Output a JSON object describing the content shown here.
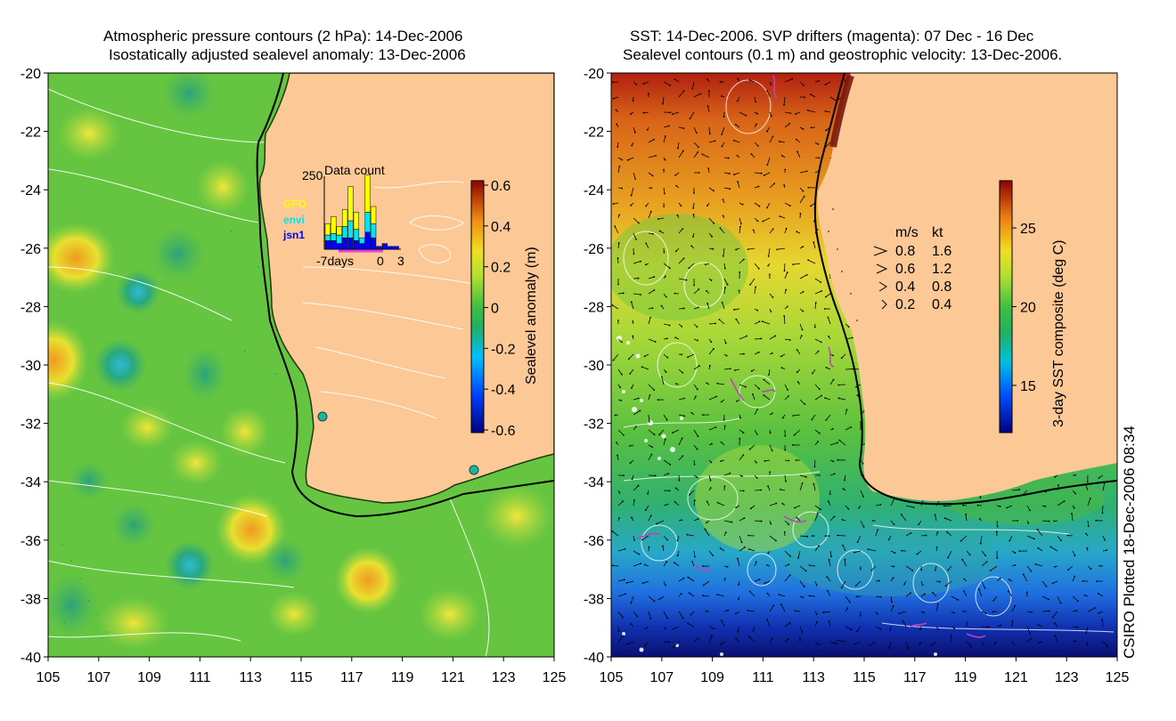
{
  "left_panel": {
    "title_line1": "Atmospheric pressure contours (2 hPa): 14-Dec-2006",
    "title_line2": "Isostatically adjusted sealevel anomaly: 13-Dec-2006",
    "x_ticks": [
      "105",
      "107",
      "109",
      "111",
      "113",
      "115",
      "117",
      "119",
      "121",
      "123",
      "125"
    ],
    "y_ticks": [
      "-20",
      "-22",
      "-24",
      "-26",
      "-28",
      "-30",
      "-32",
      "-34",
      "-36",
      "-38",
      "-40"
    ],
    "colorbar": {
      "label": "Sealevel anomaly (m)",
      "ticks": [
        "0.6",
        "0.4",
        "0.2",
        "0",
        "-0.2",
        "-0.4",
        "-0.6"
      ],
      "range": [
        -0.6,
        0.6
      ]
    },
    "inset": {
      "title": "Data count",
      "ymax_label": "250",
      "x_labels": [
        "-7days",
        "0",
        "3"
      ],
      "legend": [
        {
          "name": "GFO",
          "color": "#ffff00"
        },
        {
          "name": "envi",
          "color": "#00e5ee"
        },
        {
          "name": "jsn1",
          "color": "#0000ff"
        }
      ],
      "bars": [
        {
          "jsn1": 30,
          "envi": 20,
          "gfo": 40
        },
        {
          "jsn1": 30,
          "envi": 25,
          "gfo": 60
        },
        {
          "jsn1": 20,
          "envi": 30,
          "gfo": 30
        },
        {
          "jsn1": 40,
          "envi": 40,
          "gfo": 60
        },
        {
          "jsn1": 40,
          "envi": 60,
          "gfo": 120
        },
        {
          "jsn1": 30,
          "envi": 40,
          "gfo": 60
        },
        {
          "jsn1": 20,
          "envi": 20,
          "gfo": 0
        },
        {
          "jsn1": 60,
          "envi": 70,
          "gfo": 130
        },
        {
          "jsn1": 40,
          "envi": 50,
          "gfo": 60
        },
        {
          "jsn1": 10,
          "envi": 0,
          "gfo": 0
        },
        {
          "jsn1": 20,
          "envi": 0,
          "gfo": 0
        },
        {
          "jsn1": 10,
          "envi": 0,
          "gfo": 0
        },
        {
          "jsn1": 10,
          "envi": 0,
          "gfo": 0
        }
      ]
    }
  },
  "right_panel": {
    "title_line1": "SST: 14-Dec-2006. SVP drifters (magenta): 07 Dec - 16 Dec",
    "title_line2": "Sealevel contours (0.1 m) and geostrophic velocity: 13-Dec-2006.",
    "x_ticks": [
      "105",
      "107",
      "109",
      "111",
      "113",
      "115",
      "117",
      "119",
      "121",
      "123",
      "125"
    ],
    "y_ticks": [
      "-20",
      "-22",
      "-24",
      "-26",
      "-28",
      "-30",
      "-32",
      "-34",
      "-36",
      "-38",
      "-40"
    ],
    "colorbar": {
      "label": "3-day SST composite (deg C)",
      "ticks": [
        "25",
        "20",
        "15"
      ],
      "range": [
        12,
        28
      ]
    },
    "velocity_legend": {
      "header_ms": "m/s",
      "header_kt": "kt",
      "rows": [
        {
          "ms": "0.8",
          "kt": "1.6"
        },
        {
          "ms": "0.6",
          "kt": "1.2"
        },
        {
          "ms": "0.4",
          "kt": "0.8"
        },
        {
          "ms": "0.2",
          "kt": "0.4"
        }
      ]
    }
  },
  "credit": "CSIRO Plotted 18-Dec-2006 08:34",
  "colors": {
    "land": "#fcc896",
    "coast": "#000000",
    "contour": "#ffffff",
    "drifter": "#c040c0"
  }
}
